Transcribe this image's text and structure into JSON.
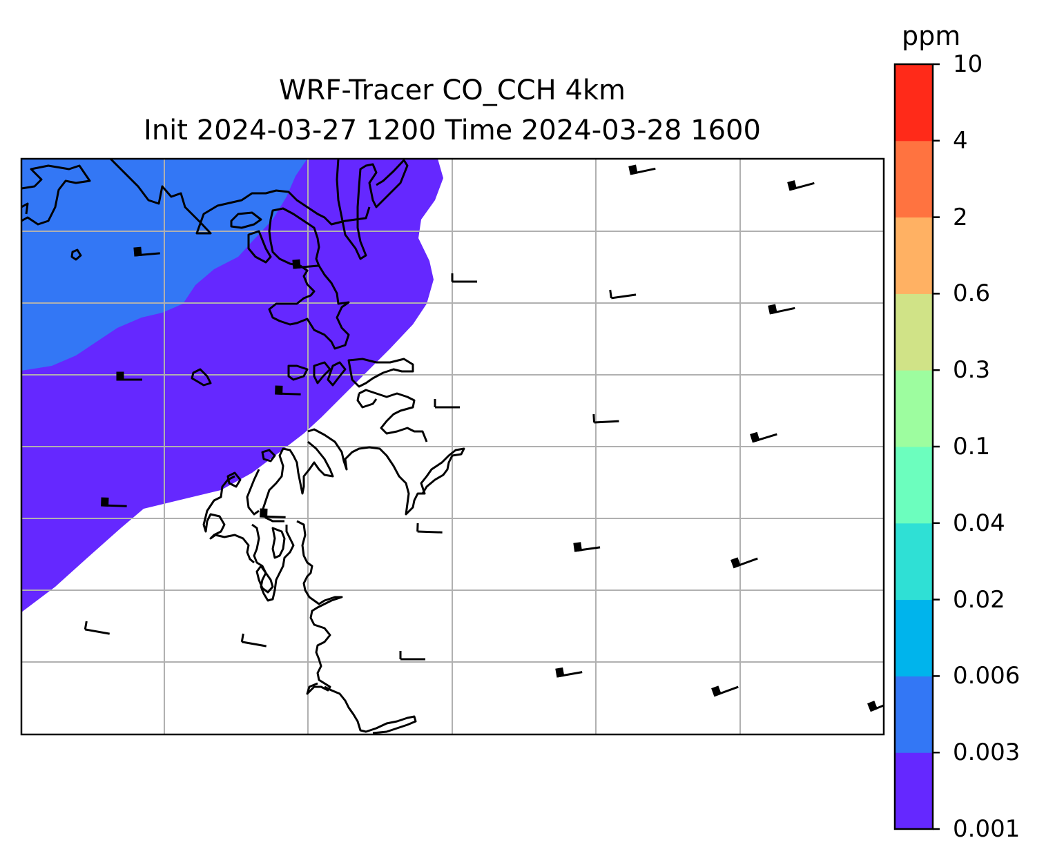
{
  "title": {
    "line1": "WRF-Tracer CO_CCH 4km",
    "line2": "Init 2024-03-27 1200 Time 2024-03-28 1600"
  },
  "colorbar": {
    "unit": "ppm",
    "levels": [
      "0.001",
      "0.003",
      "0.006",
      "0.02",
      "0.04",
      "0.1",
      "0.3",
      "0.6",
      "2",
      "4",
      "10"
    ],
    "colors": [
      "#6528ff",
      "#3377f5",
      "#00b4ec",
      "#2fe0d5",
      "#6cfebe",
      "#9dfd9f",
      "#d0e387",
      "#ffb163",
      "#ff7340",
      "#ff2a19"
    ]
  },
  "map": {
    "fill_colors": {
      "band_0_003_0_006": "#3377f5",
      "band_0_001_0_003": "#6528ff",
      "background": "#ffffff"
    },
    "gridline_color": "#b0b0b0",
    "coastline_color": "#000000"
  },
  "icons": [
    "wind-barb-icon"
  ]
}
